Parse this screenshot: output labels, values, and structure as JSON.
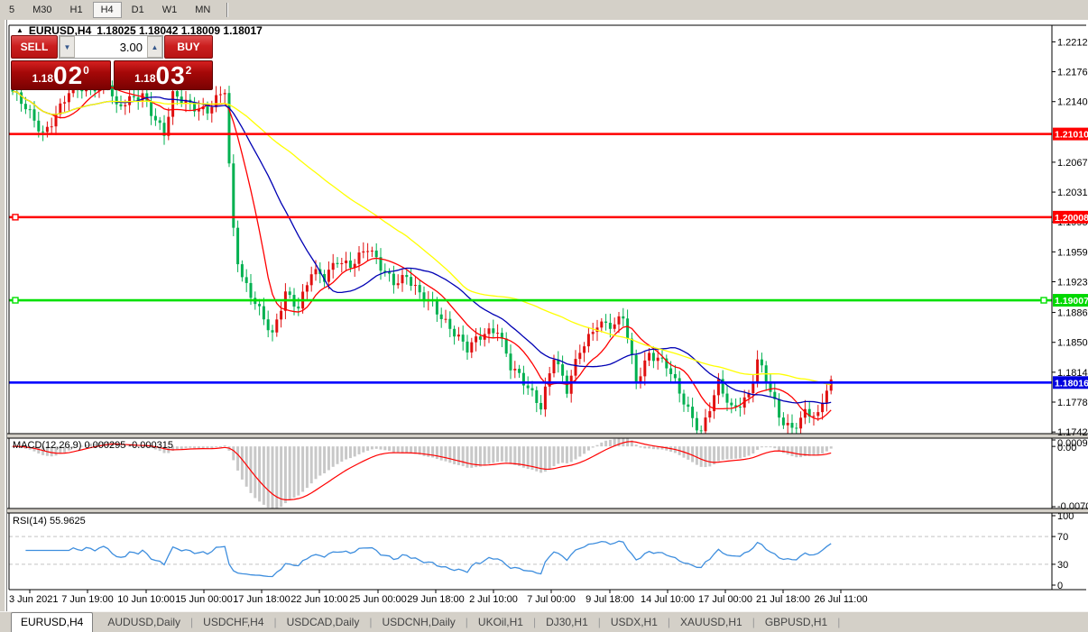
{
  "toolbar": {
    "periods": [
      "5",
      "M30",
      "H1",
      "H4",
      "D1",
      "W1",
      "MN"
    ],
    "active": "H4"
  },
  "chart_header": {
    "symbol": "EURUSD,H4",
    "ohlc": "1.18025 1.18042 1.18009 1.18017"
  },
  "trade_panel": {
    "sell_label": "SELL",
    "buy_label": "BUY",
    "volume": "3.00",
    "bid": {
      "prefix": "1.18",
      "big": "02",
      "sup": "0"
    },
    "ask": {
      "prefix": "1.18",
      "big": "03",
      "sup": "2"
    }
  },
  "tabs": [
    {
      "label": "EURUSD,H4",
      "active": true
    },
    {
      "label": "AUDUSD,Daily",
      "active": false
    },
    {
      "label": "USDCHF,H4",
      "active": false
    },
    {
      "label": "USDCAD,Daily",
      "active": false
    },
    {
      "label": "USDCNH,Daily",
      "active": false
    },
    {
      "label": "UKOil,H1",
      "active": false
    },
    {
      "label": "DJ30,H1",
      "active": false
    },
    {
      "label": "USDX,H1",
      "active": false
    },
    {
      "label": "XAUUSD,H1",
      "active": false
    },
    {
      "label": "GBPUSD,H1",
      "active": false
    }
  ],
  "colors": {
    "bull": "#e01010",
    "bear": "#00b050",
    "ma_red": "#ff0000",
    "ma_blue": "#0000b4",
    "ma_yellow": "#ffff00",
    "hline_red": "#ff0000",
    "hline_green": "#00e000",
    "hline_blue": "#0000ff",
    "label_green_bg": "#00d800",
    "label_blue_bg": "#0000e0",
    "macd_hist": "#c8c8c8",
    "macd_signal": "#ff0000",
    "rsi_line": "#3e8ede",
    "rsi_level": "#c4c4c4",
    "axis_text": "#000000",
    "frame": "#000000"
  },
  "chart_data": {
    "type": "candlestick",
    "symbol": "EURUSD",
    "timeframe": "H4",
    "title_ohlc": {
      "open": "1.18025",
      "high": "1.18042",
      "low": "1.18009",
      "close": "1.18017"
    },
    "price_range": [
      1.174,
      1.2232
    ],
    "y_axis_ticks": [
      "1.22120",
      "1.21760",
      "1.21400",
      "1.20670",
      "1.20310",
      "1.19950",
      "1.19590",
      "1.19230",
      "1.18860",
      "1.18500",
      "1.18140",
      "1.17780",
      "1.17420"
    ],
    "hlines": [
      {
        "price": 1.2101,
        "label": "1.21010",
        "color": "#ff0000",
        "bg": "#ff0000",
        "handles": []
      },
      {
        "price": 1.20008,
        "label": "1.20008",
        "color": "#ff0000",
        "bg": "#ff0000",
        "handles": [
          "left"
        ]
      },
      {
        "price": 1.19007,
        "label": "1.19007",
        "color": "#00e000",
        "bg": "#00d800",
        "handles": [
          "left",
          "right"
        ]
      },
      {
        "price": 1.18016,
        "label": "1.18016",
        "color": "#0000ff",
        "bg": "#0000e0",
        "handles": []
      }
    ],
    "x_labels": [
      "3 Jun 2021",
      "7 Jun 19:00",
      "10 Jun 10:00",
      "15 Jun 00:00",
      "17 Jun 18:00",
      "22 Jun 10:00",
      "25 Jun 00:00",
      "29 Jun 18:00",
      "2 Jul 10:00",
      "7 Jul 00:00",
      "9 Jul 18:00",
      "14 Jul 10:00",
      "17 Jul 00:00",
      "21 Jul 18:00",
      "26 Jul 11:00"
    ],
    "x_label_pos": [
      25,
      89,
      154,
      218,
      282,
      346,
      411,
      475,
      539,
      603,
      668,
      732,
      796,
      860,
      924
    ],
    "candles": {
      "count": 190,
      "close_waypoints": [
        [
          0,
          1.2152
        ],
        [
          7,
          1.2102
        ],
        [
          13,
          1.215
        ],
        [
          22,
          1.2165
        ],
        [
          24,
          1.213
        ],
        [
          30,
          1.215
        ],
        [
          35,
          1.21
        ],
        [
          37,
          1.2145
        ],
        [
          45,
          1.213
        ],
        [
          49,
          1.2152
        ],
        [
          50,
          1.206
        ],
        [
          51,
          1.1985
        ],
        [
          52,
          1.195
        ],
        [
          53,
          1.193
        ],
        [
          56,
          1.19
        ],
        [
          60,
          1.1855
        ],
        [
          63,
          1.191
        ],
        [
          66,
          1.1895
        ],
        [
          69,
          1.1935
        ],
        [
          72,
          1.1925
        ],
        [
          75,
          1.195
        ],
        [
          78,
          1.1945
        ],
        [
          82,
          1.1962
        ],
        [
          85,
          1.194
        ],
        [
          88,
          1.1925
        ],
        [
          91,
          1.193
        ],
        [
          94,
          1.1905
        ],
        [
          97,
          1.1895
        ],
        [
          101,
          1.187
        ],
        [
          105,
          1.184
        ],
        [
          109,
          1.1862
        ],
        [
          112,
          1.1868
        ],
        [
          115,
          1.182
        ],
        [
          118,
          1.18
        ],
        [
          122,
          1.1775
        ],
        [
          125,
          1.1835
        ],
        [
          128,
          1.179
        ],
        [
          131,
          1.184
        ],
        [
          135,
          1.1875
        ],
        [
          139,
          1.1868
        ],
        [
          141,
          1.188
        ],
        [
          144,
          1.1805
        ],
        [
          147,
          1.1838
        ],
        [
          151,
          1.182
        ],
        [
          155,
          1.178
        ],
        [
          159,
          1.1742
        ],
        [
          163,
          1.1798
        ],
        [
          166,
          1.177
        ],
        [
          170,
          1.1788
        ],
        [
          172,
          1.1828
        ],
        [
          175,
          1.179
        ],
        [
          177,
          1.176
        ],
        [
          180,
          1.1748
        ],
        [
          183,
          1.1765
        ],
        [
          186,
          1.1758
        ],
        [
          188,
          1.1795
        ],
        [
          189,
          1.1802
        ]
      ],
      "synth": {
        "w1": 0.0005,
        "f1": 1.9,
        "w2": 0.0003,
        "f2": 0.55,
        "wick_base": 0.0004,
        "wick_var": 0.0007
      }
    },
    "moving_averages": [
      {
        "period": 10,
        "color": "#ff0000"
      },
      {
        "period": 24,
        "color": "#0000b4"
      },
      {
        "period": 55,
        "color": "#ffff00"
      }
    ],
    "macd": {
      "label": "MACD(12,26,9) 0.000295 -0.000315",
      "fast": 12,
      "slow": 26,
      "signal": 9,
      "range": [
        -0.00705,
        0.000936
      ],
      "axis_labels": [
        {
          "text": "0.000936",
          "v": "top"
        },
        {
          "text": "0.00",
          "v": "zero"
        },
        {
          "text": "-0.00705",
          "v": "bottom"
        }
      ]
    },
    "rsi": {
      "label": "RSI(14) 55.9625",
      "period": 14,
      "levels": [
        70,
        30
      ],
      "axis_labels": [
        "100",
        "70",
        "30",
        "0"
      ],
      "range": [
        0,
        100
      ]
    }
  }
}
